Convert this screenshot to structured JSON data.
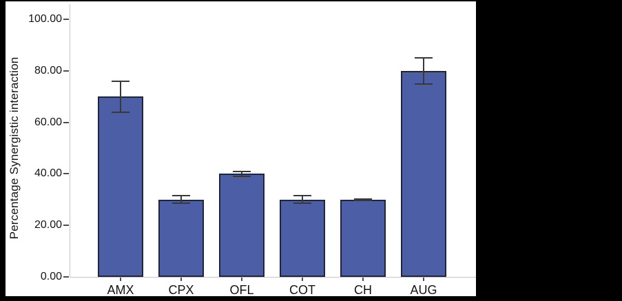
{
  "chart_data": {
    "type": "bar",
    "title": "",
    "xlabel": "",
    "ylabel": "Percentage Synergistic interaction",
    "categories": [
      "AMX",
      "CPX",
      "OFL",
      "COT",
      "CH",
      "AUG"
    ],
    "values": [
      70,
      30,
      40,
      30,
      30,
      80
    ],
    "errors": [
      6,
      1.5,
      1,
      1.5,
      0.3,
      5
    ],
    "ylim": [
      0,
      100
    ],
    "yticks": [
      0,
      20,
      40,
      60,
      80,
      100
    ],
    "ytick_labels": [
      "0.00",
      "20.00",
      "40.00",
      "60.00",
      "80.00",
      "100.00"
    ],
    "grid": false,
    "legend": null,
    "colors": {
      "bar_fill": "#4c5ea6",
      "bar_border": "#20263a",
      "axis_line": "#c4c4c4",
      "tick": "#4d4d4d",
      "error_bar": "#383838",
      "text": "#141414",
      "plot_background": "#ffffff",
      "frame_background": "#000000"
    }
  }
}
